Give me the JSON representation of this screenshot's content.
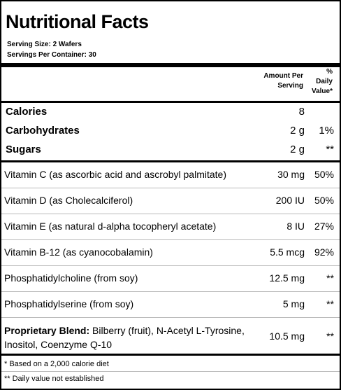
{
  "title": "Nutritional Facts",
  "serving_size": "Serving Size:  2 Wafers",
  "servings_per_container": "Servings Per Container:  30",
  "header": {
    "amount_line1": "Amount Per",
    "amount_line2": "Serving",
    "dv_line1": "%",
    "dv_line2": "Daily",
    "dv_line3": "Value*"
  },
  "main_rows": [
    {
      "name": "Calories",
      "amount": "8",
      "dv": ""
    },
    {
      "name": "Carbohydrates",
      "amount": "2 g",
      "dv": "1%"
    },
    {
      "name": "Sugars",
      "amount": "2 g",
      "dv": "**"
    }
  ],
  "nutrient_rows": [
    {
      "name": "Vitamin C (as ascorbic acid and ascrobyl palmitate)",
      "amount": "30 mg",
      "dv": "50%"
    },
    {
      "name": "Vitamin D (as Cholecalciferol)",
      "amount": "200 IU",
      "dv": "50%"
    },
    {
      "name": "Vitamin E (as natural d-alpha tocopheryl acetate)",
      "amount": "8 IU",
      "dv": "27%"
    },
    {
      "name": "Vitamin B-12 (as cyanocobalamin)",
      "amount": "5.5 mcg",
      "dv": "92%"
    },
    {
      "name": "Phosphatidylcholine (from soy)",
      "amount": "12.5 mg",
      "dv": "**"
    },
    {
      "name": "Phosphatidylserine (from soy)",
      "amount": "5 mg",
      "dv": "**"
    }
  ],
  "blend": {
    "label": "Proprietary Blend:",
    "ingredients": " Bilberry (fruit), N-Acetyl L-Tyrosine, Inositol, Coenzyme Q-10",
    "amount": "10.5 mg",
    "dv": "**"
  },
  "footnotes": [
    "* Based on a 2,000 calorie diet",
    "** Daily value not established"
  ]
}
